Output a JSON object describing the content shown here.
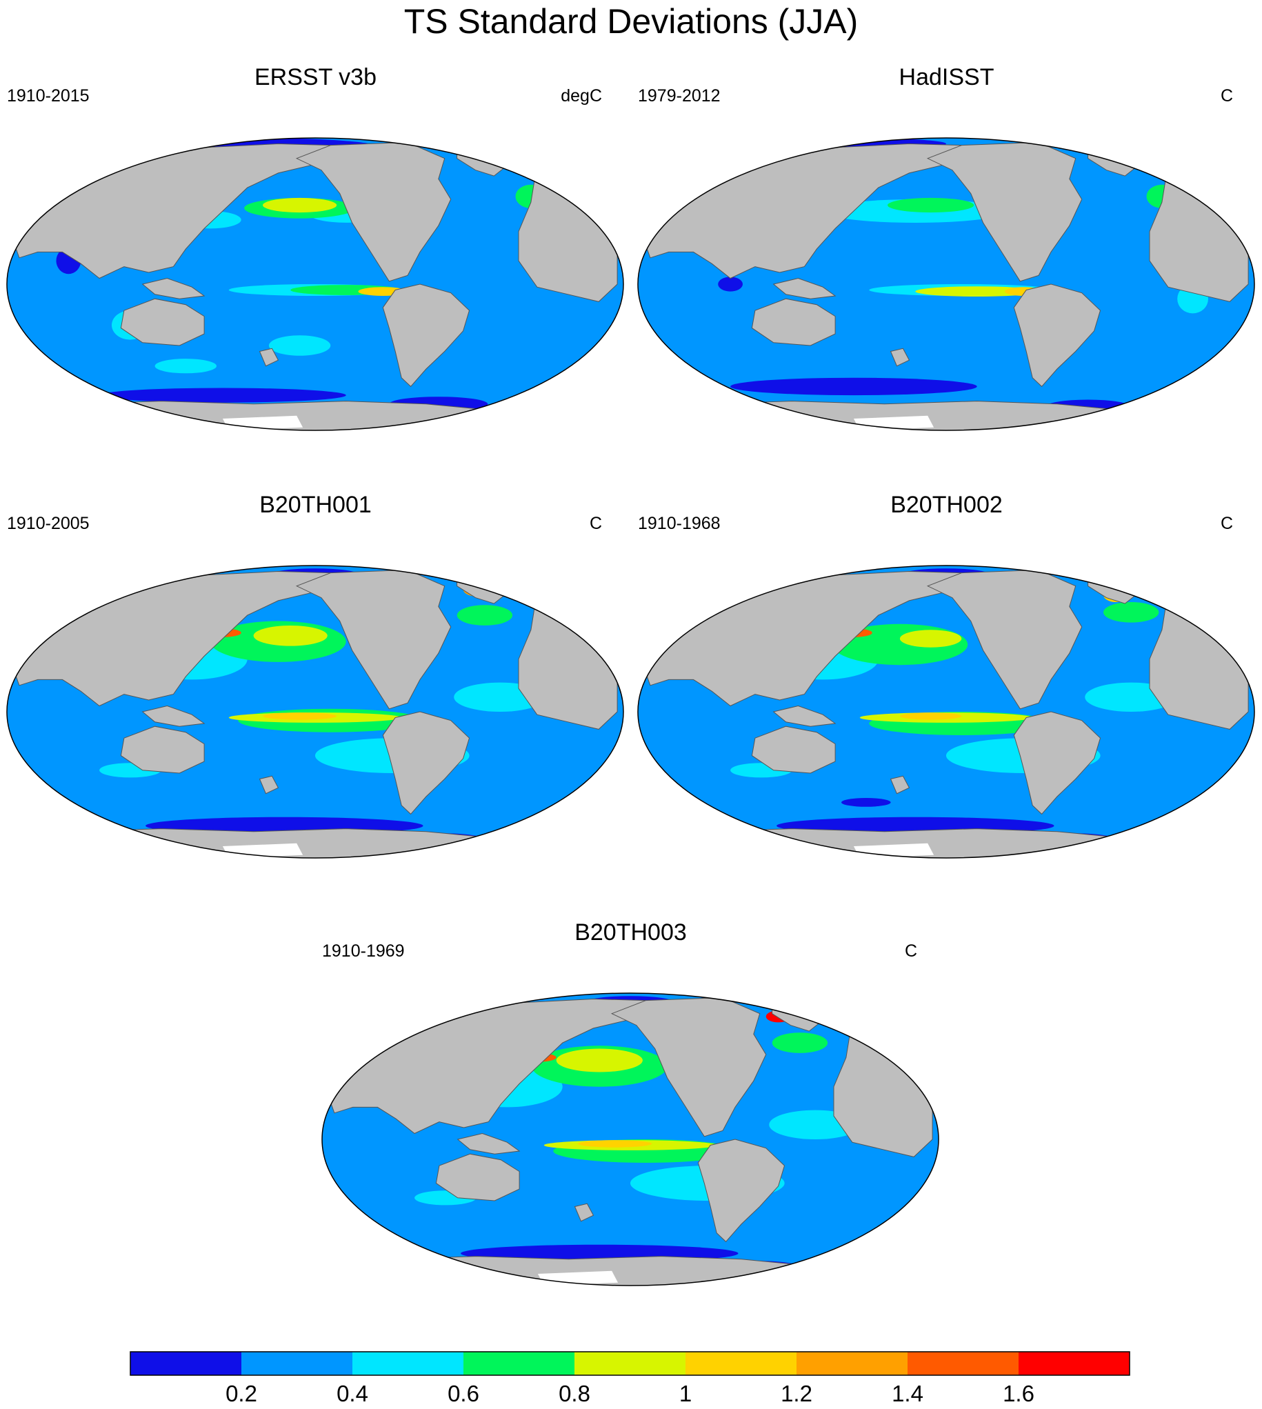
{
  "title": "TS Standard Deviations (JJA)",
  "colors": {
    "levels": [
      "#0f0fe8",
      "#0096ff",
      "#00e6ff",
      "#00f55a",
      "#d7f500",
      "#ffd200",
      "#ffa000",
      "#ff5a00",
      "#ff0000"
    ],
    "land": "#bebebe",
    "missing": "#ffffff",
    "border": "#000000"
  },
  "colorbar": {
    "labels": [
      "0.2",
      "0.4",
      "0.6",
      "0.8",
      "1",
      "1.2",
      "1.4",
      "1.6"
    ]
  },
  "panels": [
    {
      "title": "ERSST v3b",
      "period": "1910-2015",
      "units": "degC"
    },
    {
      "title": "HadISST",
      "period": "1979-2012",
      "units": "C"
    },
    {
      "title": "B20TH001",
      "period": "1910-2005",
      "units": "C"
    },
    {
      "title": "B20TH002",
      "period": "1910-1968",
      "units": "C"
    },
    {
      "title": "B20TH003",
      "period": "1910-1969",
      "units": "C"
    }
  ]
}
